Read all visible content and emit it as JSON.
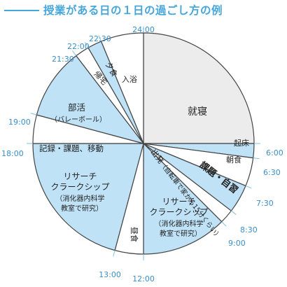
{
  "header": {
    "title": "授業がある日の１日の過ごし方の例"
  },
  "colors": {
    "accent": "#45a6dc",
    "blue": "#bfe2f7",
    "gray": "#ececec",
    "white": "#ffffff",
    "stroke": "#444444",
    "tick_line": "#7fc1e8"
  },
  "chart_data": {
    "type": "pie",
    "title": "授業がある日の１日の過ごし方の例",
    "description_unit": "hours",
    "segments": [
      {
        "label": "就寝",
        "start": "0:00",
        "end": "6:00",
        "hours": 6,
        "fill": "gray"
      },
      {
        "label": "起床",
        "start": "6:00",
        "end": "6:30",
        "hours": 0.5,
        "fill": "blue"
      },
      {
        "label": "朝食",
        "start": "6:30",
        "end": "7:30",
        "hours": 1,
        "fill": "white"
      },
      {
        "label": "課題・自習",
        "start": "7:30",
        "end": "8:30",
        "hours": 1,
        "fill": "blue"
      },
      {
        "label": "出発（自転車で家から15分くらい）",
        "start": "8:30",
        "end": "9:00",
        "hours": 0.5,
        "fill": "white"
      },
      {
        "label": "リサーチクラークシップ（消化器内科学教室で研究）",
        "start": "9:00",
        "end": "12:00",
        "hours": 3,
        "fill": "blue"
      },
      {
        "label": "昼食",
        "start": "12:00",
        "end": "13:00",
        "hours": 1,
        "fill": "white"
      },
      {
        "label": "リサーチクラークシップ（消化器内科学教室で研究）",
        "start": "13:00",
        "end": "18:00",
        "hours": 5,
        "fill": "blue"
      },
      {
        "label": "記録・課題、移動",
        "start": "18:00",
        "end": "19:00",
        "hours": 1,
        "fill": "white"
      },
      {
        "label": "部活（バレーボール）",
        "start": "19:00",
        "end": "21:30",
        "hours": 2.5,
        "fill": "blue"
      },
      {
        "label": "帰宅",
        "start": "21:30",
        "end": "22:00",
        "hours": 0.5,
        "fill": "white"
      },
      {
        "label": "夕食",
        "start": "22:00",
        "end": "22:30",
        "hours": 0.5,
        "fill": "blue"
      },
      {
        "label": "入浴",
        "start": "22:30",
        "end": "24:00",
        "hours": 1.5,
        "fill": "white"
      }
    ],
    "tick_labels": [
      "24:00",
      "6:00",
      "6:30",
      "7:30",
      "8:30",
      "9:00",
      "12:00",
      "13:00",
      "18:00",
      "19:00",
      "21:30",
      "22:00",
      "22:30"
    ],
    "labels": {
      "sleep": "就寝",
      "wake": "起床",
      "breakfast": "朝食",
      "study": "課題・自習",
      "depart_1": "出発",
      "depart_2": "（自転車で家から15分くらい）",
      "rc1_line1": "リサーチ",
      "rc1_line2": "クラークシップ",
      "rc1_line3": "（消化器内科学",
      "rc1_line4": "教室で研究）",
      "lunch": "昼食",
      "rc2_line1": "リサーチ",
      "rc2_line2": "クラークシップ",
      "rc2_line3": "（消化器内科学",
      "rc2_line4": "教室で研究）",
      "record": "記録・課題、移動",
      "club_line1": "部活",
      "club_line2": "（バレーボール）",
      "home": "帰宅",
      "dinner": "夕食",
      "bath": "入浴"
    }
  }
}
